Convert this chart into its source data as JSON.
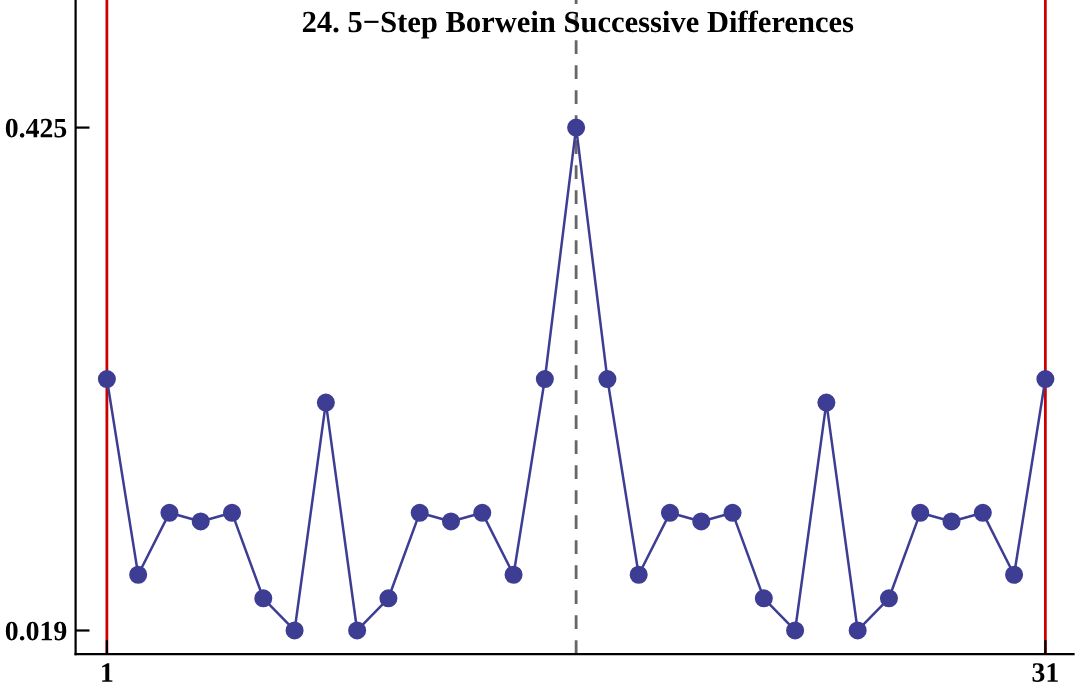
{
  "chart_data": {
    "type": "line",
    "title": "24. 5−Step Borwein Successive Differences",
    "x": [
      1,
      2,
      3,
      4,
      5,
      6,
      7,
      8,
      9,
      10,
      11,
      12,
      13,
      14,
      15,
      16,
      17,
      18,
      19,
      20,
      21,
      22,
      23,
      24,
      25,
      26,
      27,
      28,
      29,
      30,
      31
    ],
    "series": [
      {
        "color": "#3d3d94",
        "values": [
          0.222,
          0.064,
          0.114,
          0.107,
          0.114,
          0.045,
          0.019,
          0.203,
          0.019,
          0.045,
          0.114,
          0.107,
          0.114,
          0.064,
          0.222,
          0.425,
          0.222,
          0.064,
          0.114,
          0.107,
          0.114,
          0.045,
          0.019,
          0.203,
          0.019,
          0.045,
          0.114,
          0.107,
          0.114,
          0.064,
          0.222
        ]
      }
    ],
    "marker": "circle",
    "line_style": "solid",
    "xlim": [
      0,
      31.9
    ],
    "ylim": [
      0.0,
      0.528
    ],
    "xticks": [
      1,
      31
    ],
    "yticks": [
      0.019,
      0.425
    ],
    "grid": false,
    "legend": false,
    "ref_lines": [
      {
        "axis": "x",
        "value": 1,
        "color": "#cc0000",
        "line_style": "solid"
      },
      {
        "axis": "x",
        "value": 31,
        "color": "#cc0000",
        "line_style": "solid"
      },
      {
        "axis": "x",
        "value": 16,
        "color": "#666666",
        "line_style": "dashed"
      }
    ]
  }
}
